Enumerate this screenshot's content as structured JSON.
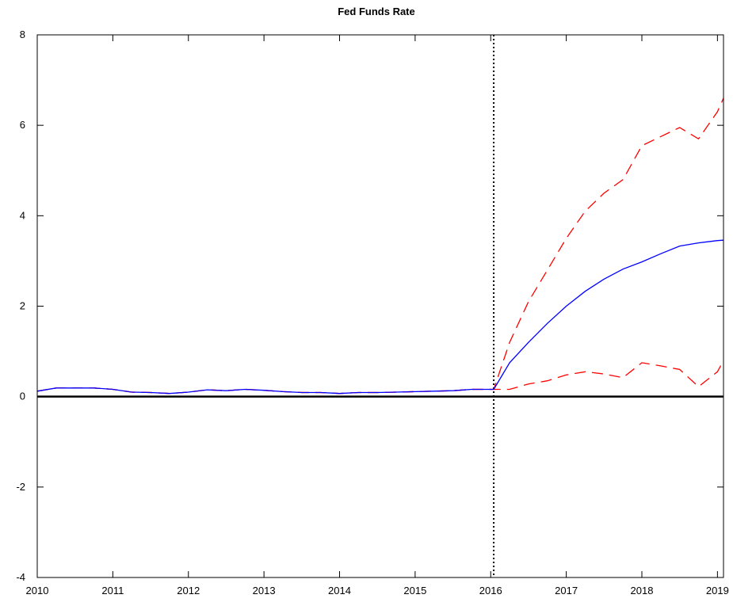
{
  "chart_data": {
    "type": "line",
    "title": "Fed Funds Rate",
    "xlabel": "",
    "ylabel": "",
    "xlim": [
      2010,
      2019.08
    ],
    "ylim": [
      -4,
      8
    ],
    "xticks": [
      2010,
      2011,
      2012,
      2013,
      2014,
      2015,
      2016,
      2017,
      2018,
      2019
    ],
    "yticks": [
      -4,
      -2,
      0,
      2,
      4,
      6,
      8
    ],
    "grid": false,
    "legend": "none",
    "reference_lines": [
      {
        "orientation": "horizontal",
        "value": 0,
        "style": "solid",
        "color": "#000000"
      },
      {
        "orientation": "vertical",
        "value": 2016.04,
        "style": "dotted",
        "color": "#000000"
      }
    ],
    "series": [
      {
        "style": "dashed",
        "color": "#ff0000",
        "x": [
          2010.0,
          2010.25,
          2010.5,
          2010.75,
          2011.0,
          2011.25,
          2011.5,
          2011.75,
          2012.0,
          2012.25,
          2012.5,
          2012.75,
          2013.0,
          2013.25,
          2013.5,
          2013.75,
          2014.0,
          2014.25,
          2014.5,
          2014.75,
          2015.0,
          2015.25,
          2015.5,
          2015.75,
          2016.04,
          2016.25,
          2016.5,
          2016.75,
          2017.0,
          2017.25,
          2017.5,
          2017.75,
          2018.0,
          2018.25,
          2018.5,
          2018.75,
          2019.0,
          2019.08
        ],
        "values": [
          0.12,
          0.19,
          0.19,
          0.19,
          0.16,
          0.1,
          0.09,
          0.07,
          0.1,
          0.15,
          0.13,
          0.16,
          0.14,
          0.11,
          0.09,
          0.09,
          0.07,
          0.09,
          0.09,
          0.1,
          0.11,
          0.12,
          0.13,
          0.16,
          0.16,
          1.2,
          2.1,
          2.8,
          3.5,
          4.1,
          4.5,
          4.8,
          5.55,
          5.75,
          5.95,
          5.7,
          6.3,
          6.6
        ]
      },
      {
        "style": "dashed",
        "color": "#ff0000",
        "x": [
          2010.0,
          2010.25,
          2010.5,
          2010.75,
          2011.0,
          2011.25,
          2011.5,
          2011.75,
          2012.0,
          2012.25,
          2012.5,
          2012.75,
          2013.0,
          2013.25,
          2013.5,
          2013.75,
          2014.0,
          2014.25,
          2014.5,
          2014.75,
          2015.0,
          2015.25,
          2015.5,
          2015.75,
          2016.04,
          2016.25,
          2016.5,
          2016.75,
          2017.0,
          2017.25,
          2017.5,
          2017.75,
          2018.0,
          2018.25,
          2018.5,
          2018.75,
          2019.0,
          2019.08
        ],
        "values": [
          0.12,
          0.19,
          0.19,
          0.19,
          0.16,
          0.1,
          0.09,
          0.07,
          0.1,
          0.15,
          0.13,
          0.16,
          0.14,
          0.11,
          0.09,
          0.09,
          0.07,
          0.09,
          0.09,
          0.1,
          0.11,
          0.12,
          0.13,
          0.16,
          0.16,
          0.16,
          0.28,
          0.35,
          0.48,
          0.55,
          0.5,
          0.42,
          0.75,
          0.68,
          0.6,
          0.22,
          0.55,
          0.8
        ]
      },
      {
        "style": "solid",
        "color": "#0000ff",
        "x": [
          2010.0,
          2010.25,
          2010.5,
          2010.75,
          2011.0,
          2011.25,
          2011.5,
          2011.75,
          2012.0,
          2012.25,
          2012.5,
          2012.75,
          2013.0,
          2013.25,
          2013.5,
          2013.75,
          2014.0,
          2014.25,
          2014.5,
          2014.75,
          2015.0,
          2015.25,
          2015.5,
          2015.75,
          2016.04,
          2016.25,
          2016.5,
          2016.75,
          2017.0,
          2017.25,
          2017.5,
          2017.75,
          2018.0,
          2018.25,
          2018.5,
          2018.75,
          2019.0,
          2019.08
        ],
        "values": [
          0.12,
          0.19,
          0.19,
          0.19,
          0.16,
          0.1,
          0.09,
          0.07,
          0.1,
          0.15,
          0.13,
          0.16,
          0.14,
          0.11,
          0.09,
          0.09,
          0.07,
          0.09,
          0.09,
          0.1,
          0.11,
          0.12,
          0.13,
          0.16,
          0.16,
          0.75,
          1.2,
          1.62,
          2.0,
          2.33,
          2.6,
          2.82,
          2.98,
          3.16,
          3.33,
          3.4,
          3.45,
          3.46
        ]
      }
    ]
  }
}
